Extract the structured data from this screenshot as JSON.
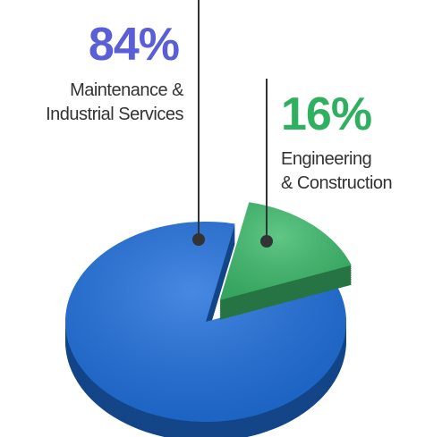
{
  "chart_data": {
    "type": "pie",
    "categories": [
      "Maintenance &\nIndustrial Services",
      "Engineering\n& Construction"
    ],
    "values": [
      84,
      16
    ],
    "value_labels": [
      "84%",
      "16%"
    ],
    "colors": [
      "#1f6fdc",
      "#3dbb6c"
    ]
  }
}
